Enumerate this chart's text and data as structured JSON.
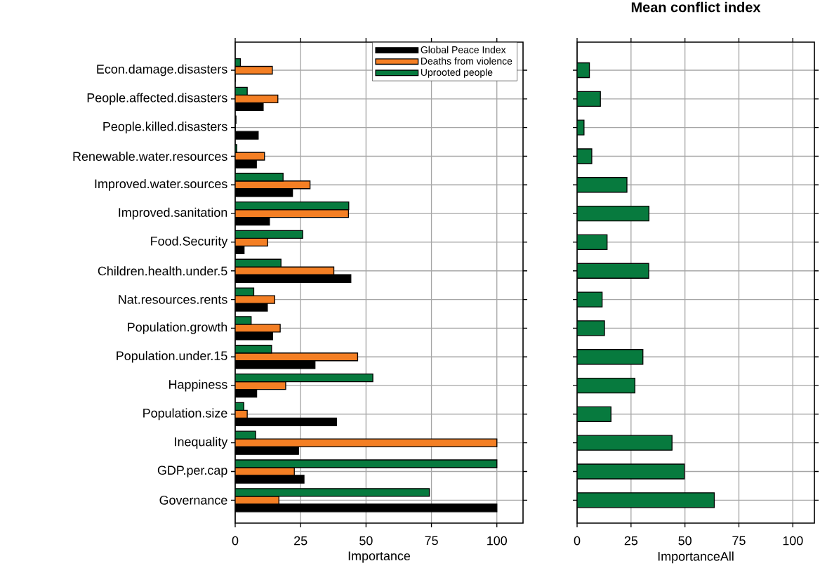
{
  "chart_data": [
    {
      "type": "bar",
      "orientation": "horizontal",
      "categories": [
        "Econ.damage.disasters",
        "People.affected.disasters",
        "People.killed.disasters",
        "Renewable.water.resources",
        "Improved.water.sources",
        "Improved.sanitation",
        "Food.Security",
        "Children.health.under.5",
        "Nat.resources.rents",
        "Population.growth",
        "Population.under.15",
        "Happiness",
        "Population.size",
        "Inequality",
        "GDP.per.cap",
        "Governance"
      ],
      "series": [
        {
          "name": "Global Peace Index",
          "color": "#000000",
          "values": [
            0,
            10.7,
            8.8,
            8.1,
            21.9,
            13.1,
            3.4,
            44.2,
            12.3,
            14.3,
            30.5,
            8.2,
            38.7,
            24.2,
            26.3,
            100
          ]
        },
        {
          "name": "Deaths from violence",
          "color": "#f47f24",
          "values": [
            14.2,
            16.3,
            0,
            11.2,
            28.6,
            43.3,
            12.4,
            37.7,
            15.1,
            17.2,
            46.8,
            19.3,
            4.6,
            100,
            22.6,
            16.7
          ]
        },
        {
          "name": "Uprooted people",
          "color": "#077a3e",
          "values": [
            2.0,
            4.6,
            0.3,
            0.6,
            18.3,
            43.4,
            25.8,
            17.5,
            7.1,
            6.1,
            13.9,
            52.6,
            3.3,
            7.8,
            100,
            74.2
          ]
        }
      ],
      "xlabel": "Importance",
      "xlim": [
        0,
        110
      ],
      "xticks": [
        0,
        25,
        50,
        75,
        100
      ],
      "grid": true,
      "legend": "top right"
    },
    {
      "type": "bar",
      "orientation": "horizontal",
      "title": "Mean conflict index",
      "categories": [
        null,
        null,
        null,
        null,
        null,
        null,
        null,
        null,
        null,
        null,
        null,
        null,
        null,
        null,
        null,
        null
      ],
      "values": [
        5.7,
        10.8,
        3.2,
        6.8,
        23.1,
        33.3,
        13.9,
        33.2,
        11.6,
        12.7,
        30.5,
        26.8,
        15.7,
        44.0,
        49.7,
        63.6
      ],
      "color": "#077a3e",
      "xlabel": "ImportanceAll",
      "xlim": [
        0,
        110
      ],
      "xticks": [
        0,
        25,
        50,
        75,
        100
      ],
      "grid": true,
      "tick_labels": "x"
    }
  ]
}
